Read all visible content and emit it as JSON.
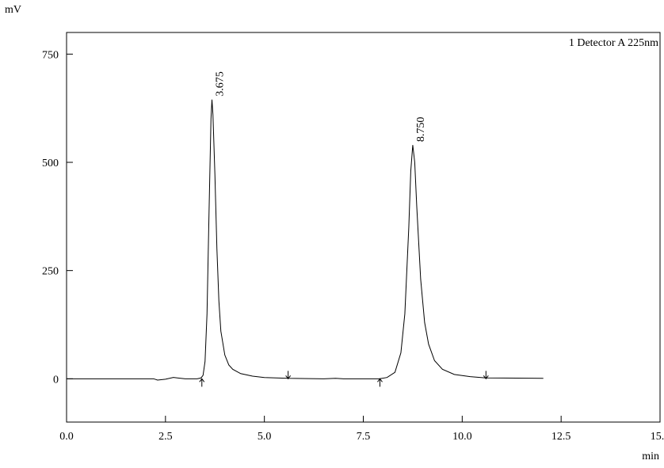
{
  "chart_data": {
    "type": "line",
    "y_label": "mV",
    "x_label": "min",
    "legend_text": "1 Detector A 225nm",
    "xlim": [
      0,
      15
    ],
    "ylim": [
      -100,
      800
    ],
    "xticks": [
      {
        "value": 0,
        "label": "0.0"
      },
      2.5,
      {
        "value": 5,
        "label": "5.0"
      },
      7.5,
      {
        "value": 10,
        "label": "10.0"
      },
      12.5,
      {
        "value": 15,
        "label": "15.0"
      }
    ],
    "yticks": [
      0,
      250,
      500,
      750
    ],
    "color": "#000000",
    "x": [
      0,
      2.2,
      2.3,
      2.5,
      2.7,
      2.8,
      3.0,
      3.3,
      3.4,
      3.45,
      3.5,
      3.55,
      3.6,
      3.65,
      3.675,
      3.7,
      3.75,
      3.8,
      3.85,
      3.9,
      4.0,
      4.1,
      4.2,
      4.4,
      4.7,
      5.0,
      5.6,
      6.5,
      6.8,
      7.0,
      7.5,
      7.9,
      8.1,
      8.3,
      8.45,
      8.55,
      8.65,
      8.7,
      8.75,
      8.8,
      8.85,
      8.95,
      9.05,
      9.15,
      9.3,
      9.5,
      9.8,
      10.2,
      10.6,
      12.05
    ],
    "values": [
      0,
      0,
      -3,
      -1,
      3,
      2,
      0,
      0,
      2,
      8,
      40,
      150,
      380,
      600,
      645,
      610,
      470,
      300,
      180,
      110,
      55,
      32,
      22,
      12,
      6,
      3,
      1,
      0,
      1,
      0,
      0,
      0,
      3,
      15,
      60,
      150,
      350,
      480,
      540,
      500,
      400,
      230,
      130,
      80,
      42,
      22,
      10,
      5,
      2,
      1
    ],
    "peaks": [
      {
        "value": 3.675,
        "label": "3.675"
      },
      {
        "value": 8.75,
        "label": "8.750"
      }
    ],
    "peak_starts": [
      3.42,
      7.92
    ],
    "peak_ends": [
      5.6,
      10.6
    ]
  }
}
